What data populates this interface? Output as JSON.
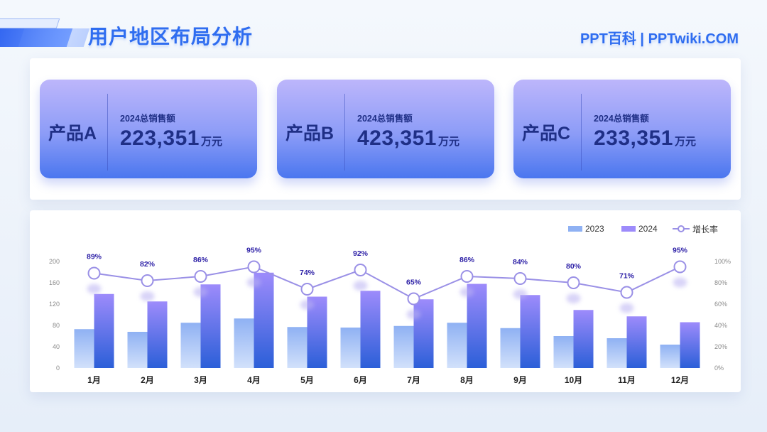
{
  "header": {
    "title": "用户地区布局分析",
    "brand": "PPT百科 | PPTwiki.COM"
  },
  "cards": [
    {
      "name": "产品A",
      "label": "2024总销售额",
      "value": "223,351",
      "unit": "万元"
    },
    {
      "name": "产品B",
      "label": "2024总销售额",
      "value": "423,351",
      "unit": "万元"
    },
    {
      "name": "产品C",
      "label": "2024总销售额",
      "value": "233,351",
      "unit": "万元"
    }
  ],
  "colors": {
    "accent": "#2f6df0",
    "dark_text": "#1f2f86",
    "bar2023_top": "#8fb1f3",
    "bar2023_bottom": "#d2e1fb",
    "bar2024_top": "#9d8bfb",
    "bar2024_bottom": "#2b5fd8",
    "line": "#9a90e6",
    "label": "#2c1fa6"
  },
  "chart_data": {
    "type": "bar",
    "categories": [
      "1月",
      "2月",
      "3月",
      "4月",
      "5月",
      "6月",
      "7月",
      "8月",
      "9月",
      "10月",
      "11月",
      "12月"
    ],
    "series": [
      {
        "name": "2023",
        "type": "bar",
        "values": [
          73,
          68,
          85,
          93,
          77,
          76,
          79,
          85,
          75,
          60,
          56,
          44
        ]
      },
      {
        "name": "2024",
        "type": "bar",
        "values": [
          139,
          125,
          157,
          179,
          134,
          145,
          129,
          158,
          137,
          109,
          97,
          86
        ]
      },
      {
        "name": "增长率",
        "type": "line",
        "axis": "right",
        "values": [
          89,
          82,
          86,
          95,
          74,
          92,
          65,
          86,
          84,
          80,
          71,
          95
        ],
        "labels": [
          "89%",
          "82%",
          "86%",
          "95%",
          "74%",
          "92%",
          "65%",
          "86%",
          "84%",
          "80%",
          "71%",
          "95%"
        ]
      }
    ],
    "ylim": [
      0,
      200
    ],
    "y_ticks": [
      "0",
      "40",
      "80",
      "120",
      "160",
      "200"
    ],
    "y2lim": [
      0,
      100
    ],
    "y2_ticks": [
      "0%",
      "20%",
      "40%",
      "60%",
      "80%",
      "100%"
    ],
    "legend_position": "top-right",
    "grid": false
  }
}
